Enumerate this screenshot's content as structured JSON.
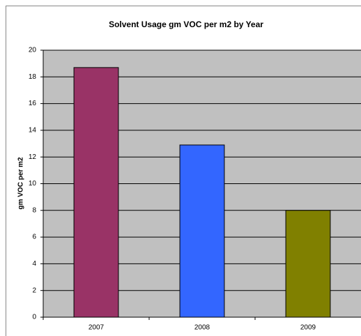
{
  "chart_data": {
    "type": "bar",
    "title": "Solvent Usage gm VOC per m2 by Year",
    "y_label": "gm VOC per m2",
    "categories": [
      "2007",
      "2008",
      "2009"
    ],
    "values": [
      18.7,
      12.9,
      8.0
    ],
    "colors": [
      "#993366",
      "#3366ff",
      "#808000"
    ],
    "ylim": [
      0,
      20
    ],
    "yticks": [
      0,
      2,
      4,
      6,
      8,
      10,
      12,
      14,
      16,
      18,
      20
    ],
    "grid": true
  }
}
